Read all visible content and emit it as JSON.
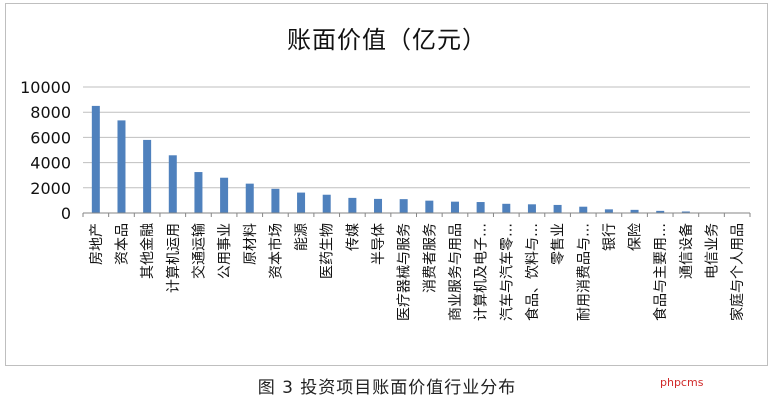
{
  "caption": "图 3  投资项目账面价值行业分布",
  "watermark": "phpcms",
  "colors": {
    "bar": "#4f81bd",
    "grid": "#bfbfbf",
    "axis": "#868686",
    "text": "#111111"
  },
  "chart_data": {
    "type": "bar",
    "title": "账面价值（亿元）",
    "xlabel": "",
    "ylabel": "",
    "ylim": [
      0,
      10000
    ],
    "yticks": [
      0,
      2000,
      4000,
      6000,
      8000,
      10000
    ],
    "ytick_labels": [
      "0",
      "2000",
      "4000",
      "6000",
      "8000",
      "10000"
    ],
    "grid": true,
    "legend": "none",
    "categories": [
      "房地产",
      "资本品",
      "其他金融",
      "计算机运用",
      "交通运输",
      "公用事业",
      "原材料",
      "资本市场",
      "能源",
      "医药生物",
      "传媒",
      "半导体",
      "医疗器械与服务",
      "消费者服务",
      "商业服务与用品",
      "计算机及电子…",
      "汽车与汽车零…",
      "食品、饮料与…",
      "零售业",
      "耐用消费品与…",
      "银行",
      "保险",
      "食品与主要用…",
      "通信设备",
      "电信业务",
      "家庭与个人用品"
    ],
    "values": [
      8500,
      7350,
      5800,
      4580,
      3250,
      2800,
      2330,
      1920,
      1620,
      1450,
      1200,
      1120,
      1100,
      980,
      900,
      870,
      730,
      690,
      640,
      500,
      290,
      250,
      170,
      120,
      30,
      20
    ]
  }
}
